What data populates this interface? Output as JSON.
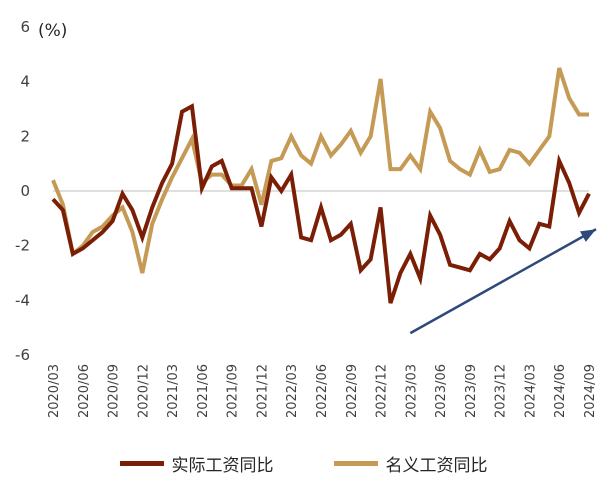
{
  "chart_data": {
    "type": "line",
    "unit_label": "(%)",
    "ylim": [
      -6,
      6
    ],
    "yticks": [
      6,
      4,
      2,
      0,
      -2,
      -4,
      -6
    ],
    "x": [
      "2020/03",
      "2020/04",
      "2020/05",
      "2020/06",
      "2020/07",
      "2020/08",
      "2020/09",
      "2020/10",
      "2020/11",
      "2020/12",
      "2021/01",
      "2021/02",
      "2021/03",
      "2021/04",
      "2021/05",
      "2021/06",
      "2021/07",
      "2021/08",
      "2021/09",
      "2021/10",
      "2021/11",
      "2021/12",
      "2022/01",
      "2022/02",
      "2022/03",
      "2022/04",
      "2022/05",
      "2022/06",
      "2022/07",
      "2022/08",
      "2022/09",
      "2022/10",
      "2022/11",
      "2022/12",
      "2023/01",
      "2023/02",
      "2023/03",
      "2023/04",
      "2023/05",
      "2023/06",
      "2023/07",
      "2023/08",
      "2023/09",
      "2023/10",
      "2023/11",
      "2023/12",
      "2024/01",
      "2024/02",
      "2024/03",
      "2024/04",
      "2024/05",
      "2024/06",
      "2024/07",
      "2024/08",
      "2024/09"
    ],
    "xtick_labels": [
      "2020/03",
      "2020/06",
      "2020/09",
      "2020/12",
      "2021/03",
      "2021/06",
      "2021/09",
      "2021/12",
      "2022/03",
      "2022/06",
      "2022/09",
      "2022/12",
      "2023/03",
      "2023/06",
      "2023/09",
      "2023/12",
      "2024/03",
      "2024/06",
      "2024/09"
    ],
    "series": [
      {
        "name": "实际工资同比",
        "color": "#7a1e05",
        "values": [
          -0.3,
          -0.7,
          -2.3,
          -2.1,
          -1.8,
          -1.5,
          -1.1,
          -0.1,
          -0.7,
          -1.7,
          -0.6,
          0.3,
          1.0,
          2.9,
          3.1,
          0.1,
          0.9,
          1.1,
          0.1,
          0.1,
          0.1,
          -1.3,
          0.5,
          0.0,
          0.6,
          -1.7,
          -1.8,
          -0.6,
          -1.8,
          -1.6,
          -1.2,
          -2.9,
          -2.5,
          -0.6,
          -4.1,
          -3.0,
          -2.3,
          -3.2,
          -0.9,
          -1.6,
          -2.7,
          -2.8,
          -2.9,
          -2.3,
          -2.5,
          -2.1,
          -1.1,
          -1.8,
          -2.1,
          -1.2,
          -1.3,
          1.1,
          0.3,
          -0.8,
          -0.1
        ]
      },
      {
        "name": "名义工资同比",
        "color": "#c49a55",
        "values": [
          0.4,
          -0.5,
          -2.3,
          -2.0,
          -1.5,
          -1.3,
          -0.9,
          -0.6,
          -1.5,
          -3.0,
          -1.2,
          -0.3,
          0.5,
          1.2,
          1.9,
          0.3,
          0.6,
          0.6,
          0.2,
          0.2,
          0.8,
          -0.5,
          1.1,
          1.2,
          2.0,
          1.3,
          1.0,
          2.0,
          1.3,
          1.7,
          2.2,
          1.4,
          2.0,
          4.1,
          0.8,
          0.8,
          1.3,
          0.8,
          2.9,
          2.3,
          1.1,
          0.8,
          0.6,
          1.5,
          0.7,
          0.8,
          1.5,
          1.4,
          1.0,
          1.5,
          2.0,
          4.5,
          3.4,
          2.8,
          2.8
        ]
      }
    ],
    "annotation": {
      "type": "arrow",
      "from": {
        "x": "2023/03",
        "y": -5.2
      },
      "to": {
        "x": "2024/09",
        "y": -1.4
      },
      "color": "#2e4a7a"
    }
  }
}
